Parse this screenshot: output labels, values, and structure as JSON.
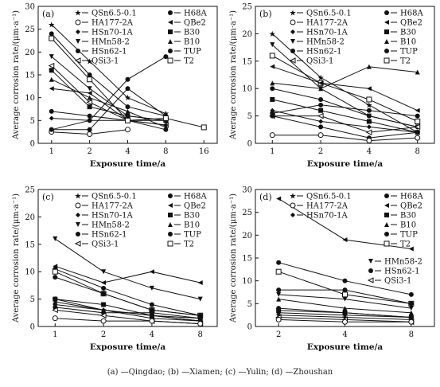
{
  "caption": "(a) —Qingdao; (b) —Xiamen; (c) —Yulin; (d) —Zhoushan",
  "chart_data": [
    {
      "type": "line",
      "panel_label": "(a)",
      "xlabel": "Exposure time/a",
      "ylabel": "Average corrosion rate/(μm·a⁻¹)",
      "x_scale": "log2",
      "x_ticks": [
        1,
        2,
        4,
        8,
        16
      ],
      "ylim": [
        0,
        30
      ],
      "y_ticks": [
        0,
        5,
        10,
        15,
        20,
        25,
        30
      ],
      "legend": {
        "left": [
          {
            "label": "QSn6.5-0.1",
            "marker": "★"
          },
          {
            "label": "HA177-2A",
            "marker": "○"
          },
          {
            "label": "HSn70-1A",
            "marker": "◆"
          },
          {
            "label": "HMn58-2",
            "marker": "▼"
          },
          {
            "label": "HSn62-1",
            "marker": "●"
          },
          {
            "label": "QSi3-1",
            "marker": "◁"
          }
        ],
        "right": [
          {
            "label": "H68A",
            "marker": "●"
          },
          {
            "label": "QBe2",
            "marker": "◄"
          },
          {
            "label": "B30",
            "marker": "■"
          },
          {
            "label": "B10",
            "marker": "▲"
          },
          {
            "label": "TUP",
            "marker": "●"
          },
          {
            "label": "T2",
            "marker": "□"
          }
        ]
      },
      "series": [
        {
          "name": "QSn6.5-0.1",
          "x": [
            1,
            2,
            4,
            8
          ],
          "values": [
            26,
            18,
            10,
            6.5
          ]
        },
        {
          "name": "HSn62-1",
          "x": [
            1,
            2,
            4,
            8
          ],
          "values": [
            24,
            15,
            8,
            6
          ]
        },
        {
          "name": "HMn58-2",
          "x": [
            1,
            2,
            4,
            8
          ],
          "values": [
            19,
            12,
            6,
            5
          ]
        },
        {
          "name": "QSi3-1",
          "x": [
            1,
            2,
            4,
            8
          ],
          "values": [
            17,
            9,
            5,
            4
          ]
        },
        {
          "name": "B30",
          "x": [
            1,
            2,
            4,
            8
          ],
          "values": [
            16,
            8,
            6,
            5
          ]
        },
        {
          "name": "B10",
          "x": [
            1,
            2,
            4,
            8
          ],
          "values": [
            14,
            10,
            7,
            3.5
          ]
        },
        {
          "name": "QBe2",
          "x": [
            1,
            2,
            4,
            8
          ],
          "values": [
            12,
            11,
            5,
            5
          ]
        },
        {
          "name": "TUP",
          "x": [
            1,
            2,
            4,
            8
          ],
          "values": [
            7,
            6,
            5,
            3
          ]
        },
        {
          "name": "HSn70-1A",
          "x": [
            1,
            2,
            4,
            8
          ],
          "values": [
            5.5,
            5,
            5,
            4
          ]
        },
        {
          "name": "H68A",
          "x": [
            1,
            2,
            4,
            8
          ],
          "values": [
            3,
            3,
            12,
            6
          ]
        },
        {
          "name": "HA177-2A",
          "x": [
            1,
            2,
            4
          ],
          "values": [
            2.5,
            2,
            3
          ]
        },
        {
          "name": "T2",
          "x": [
            1,
            2,
            4,
            8,
            16
          ],
          "values": [
            23,
            14,
            5,
            5.5,
            3.5
          ]
        },
        {
          "name": "",
          "x": [
            1,
            2,
            4,
            8
          ],
          "values": [
            3,
            5,
            14,
            19
          ]
        }
      ]
    },
    {
      "type": "line",
      "panel_label": "(b)",
      "xlabel": "Exposure time/a",
      "ylabel": "Average corrosion rate/(μm·a⁻¹)",
      "x_scale": "log2",
      "x_ticks": [
        1,
        2,
        4,
        8
      ],
      "ylim": [
        0,
        25
      ],
      "y_ticks": [
        0,
        5,
        10,
        15,
        20,
        25
      ],
      "legend": {
        "left": [
          {
            "label": "QSn6.5-0.1",
            "marker": "★"
          },
          {
            "label": "HA177-2A",
            "marker": "○"
          },
          {
            "label": "HSn70-1A",
            "marker": "◆"
          },
          {
            "label": "HMn58-2",
            "marker": "▼"
          },
          {
            "label": "HSn62-1",
            "marker": "●"
          },
          {
            "label": "QSi3-1",
            "marker": "◁"
          }
        ],
        "right": [
          {
            "label": "H68A",
            "marker": "●"
          },
          {
            "label": "QBe2",
            "marker": "◄"
          },
          {
            "label": "B30",
            "marker": "■"
          },
          {
            "label": "B10",
            "marker": "▲"
          },
          {
            "label": "TUP",
            "marker": "●"
          },
          {
            "label": "T2",
            "marker": "□"
          }
        ]
      },
      "series": [
        {
          "name": "QSn6.5-0.1",
          "x": [
            1,
            2,
            4,
            8
          ],
          "values": [
            20,
            12,
            7,
            2
          ]
        },
        {
          "name": "HMn58-2",
          "x": [
            1,
            2,
            4,
            8
          ],
          "values": [
            18,
            10,
            5,
            3
          ]
        },
        {
          "name": "T2",
          "x": [
            1,
            2,
            4,
            8
          ],
          "values": [
            16,
            11,
            8,
            4
          ]
        },
        {
          "name": "QBe2",
          "x": [
            1,
            2,
            4,
            8
          ],
          "values": [
            14,
            11,
            10,
            6
          ]
        },
        {
          "name": "B10",
          "x": [
            1,
            2,
            4,
            8
          ],
          "values": [
            11,
            10,
            14,
            13
          ]
        },
        {
          "name": "HSn62-1",
          "x": [
            1,
            2,
            4,
            8
          ],
          "values": [
            10,
            8,
            5,
            3
          ]
        },
        {
          "name": "B30",
          "x": [
            1,
            2,
            4,
            8
          ],
          "values": [
            8,
            6,
            4,
            2
          ]
        },
        {
          "name": "HSn70-1A",
          "x": [
            1,
            2,
            4,
            8
          ],
          "values": [
            6,
            4,
            3,
            2
          ]
        },
        {
          "name": "QSi3-1",
          "x": [
            1,
            2,
            4,
            8
          ],
          "values": [
            5,
            5,
            2,
            3
          ]
        },
        {
          "name": "H68A",
          "x": [
            1,
            2,
            4,
            8
          ],
          "values": [
            5,
            3,
            1,
            2
          ]
        },
        {
          "name": "TUP",
          "x": [
            1,
            2,
            4,
            8
          ],
          "values": [
            5.5,
            7,
            6,
            5
          ]
        },
        {
          "name": "HA177-2A",
          "x": [
            1,
            2,
            4,
            8
          ],
          "values": [
            1.5,
            1.5,
            0.5,
            1
          ]
        }
      ]
    },
    {
      "type": "line",
      "panel_label": "(c)",
      "xlabel": "Exposure time/a",
      "ylabel": "Average corrosion rate/(μm·a⁻¹)",
      "x_scale": "log2",
      "x_ticks": [
        1,
        2,
        4,
        8
      ],
      "ylim": [
        0,
        25
      ],
      "y_ticks": [
        0,
        5,
        10,
        15,
        20,
        25
      ],
      "legend": {
        "left": [
          {
            "label": "QSn6.5-0.1",
            "marker": "★"
          },
          {
            "label": "HA177-2A",
            "marker": "○"
          },
          {
            "label": "HSn70-1A",
            "marker": "◆"
          },
          {
            "label": "HMn58-2",
            "marker": "▼"
          },
          {
            "label": "HSn62-1",
            "marker": "●"
          },
          {
            "label": "QSi3-1",
            "marker": "◁"
          }
        ],
        "right": [
          {
            "label": "H68A",
            "marker": "●"
          },
          {
            "label": "QBe2",
            "marker": "◄"
          },
          {
            "label": "B30",
            "marker": "■"
          },
          {
            "label": "B10",
            "marker": "▲"
          },
          {
            "label": "TUP",
            "marker": "●"
          },
          {
            "label": "T2",
            "marker": "□"
          }
        ]
      },
      "series": [
        {
          "name": "HMn58-2",
          "x": [
            1,
            2,
            4,
            8
          ],
          "values": [
            16,
            10,
            7,
            5
          ]
        },
        {
          "name": "QBe2",
          "x": [
            1,
            2,
            4,
            8
          ],
          "values": [
            11,
            8,
            10,
            8
          ]
        },
        {
          "name": "H68A",
          "x": [
            1,
            2,
            4,
            8
          ],
          "values": [
            10.5,
            7,
            4,
            2
          ]
        },
        {
          "name": "T2",
          "x": [
            1,
            2,
            4,
            8
          ],
          "values": [
            10,
            6,
            3,
            2
          ]
        },
        {
          "name": "HSn62-1",
          "x": [
            1,
            2,
            4,
            8
          ],
          "values": [
            9,
            6,
            3,
            2
          ]
        },
        {
          "name": "QSn6.5-0.1",
          "x": [
            1,
            2,
            4,
            8
          ],
          "values": [
            5,
            3,
            2,
            1
          ]
        },
        {
          "name": "B30",
          "x": [
            1,
            2,
            4,
            8
          ],
          "values": [
            5,
            4,
            2,
            1.5
          ]
        },
        {
          "name": "B10",
          "x": [
            1,
            2,
            4,
            8
          ],
          "values": [
            4.5,
            3,
            2,
            1
          ]
        },
        {
          "name": "HSn70-1A",
          "x": [
            1,
            2,
            4,
            8
          ],
          "values": [
            4,
            3,
            1.5,
            1
          ]
        },
        {
          "name": "TUP",
          "x": [
            1,
            2,
            4,
            8
          ],
          "values": [
            3.5,
            2.5,
            2.5,
            1.5
          ]
        },
        {
          "name": "QSi3-1",
          "x": [
            1,
            2,
            4,
            8
          ],
          "values": [
            3,
            2,
            1,
            0.5
          ]
        },
        {
          "name": "HA177-2A",
          "x": [
            1,
            2,
            4,
            8
          ],
          "values": [
            1.5,
            1,
            1,
            0.5
          ]
        }
      ]
    },
    {
      "type": "line",
      "panel_label": "(d)",
      "xlabel": "Exposure time/a",
      "ylabel": "Average corrosion rate/(μm·a⁻¹)",
      "x_scale": "log2",
      "x_ticks": [
        2,
        4,
        8
      ],
      "ylim": [
        0,
        30
      ],
      "y_ticks": [
        0,
        5,
        10,
        15,
        20,
        25,
        30
      ],
      "legend": {
        "left": [
          {
            "label": "QSn6.5-0.1",
            "marker": "★"
          },
          {
            "label": "HA177-2A",
            "marker": "○"
          },
          {
            "label": "HSn70-1A",
            "marker": "◆"
          }
        ],
        "right": [
          {
            "label": "H68A",
            "marker": "●"
          },
          {
            "label": "QBe2",
            "marker": "◄"
          },
          {
            "label": "B30",
            "marker": "■"
          },
          {
            "label": "B10",
            "marker": "▲"
          },
          {
            "label": "TUP",
            "marker": "●"
          },
          {
            "label": "T2",
            "marker": "□"
          }
        ],
        "right_lower": [
          {
            "label": "HMn58-2",
            "marker": "▼"
          },
          {
            "label": "HSn62-1",
            "marker": "●"
          },
          {
            "label": "QSi3-1",
            "marker": "◁"
          }
        ]
      },
      "series": [
        {
          "name": "QBe2",
          "x": [
            2,
            4,
            8
          ],
          "values": [
            28,
            19,
            17
          ]
        },
        {
          "name": "HSn62-1",
          "x": [
            2,
            4,
            8
          ],
          "values": [
            14,
            10,
            7
          ]
        },
        {
          "name": "T2",
          "x": [
            2,
            4,
            8
          ],
          "values": [
            12,
            7,
            5
          ]
        },
        {
          "name": "H68A",
          "x": [
            2,
            4,
            8
          ],
          "values": [
            8,
            8,
            5
          ]
        },
        {
          "name": "HMn58-2",
          "x": [
            2,
            4,
            8
          ],
          "values": [
            7,
            6,
            4
          ]
        },
        {
          "name": "B10",
          "x": [
            2,
            4,
            8
          ],
          "values": [
            6,
            4,
            3
          ]
        },
        {
          "name": "TUP",
          "x": [
            2,
            4,
            8
          ],
          "values": [
            4,
            3,
            2
          ]
        },
        {
          "name": "B30",
          "x": [
            2,
            4,
            8
          ],
          "values": [
            3.5,
            3,
            2
          ]
        },
        {
          "name": "HSn70-1A",
          "x": [
            2,
            4,
            8
          ],
          "values": [
            3,
            2.5,
            2
          ]
        },
        {
          "name": "QSn6.5-0.1",
          "x": [
            2,
            4,
            8
          ],
          "values": [
            2.5,
            2,
            1.5
          ]
        },
        {
          "name": "QSi3-1",
          "x": [
            2,
            4,
            8
          ],
          "values": [
            2,
            1.5,
            1
          ]
        },
        {
          "name": "HA177-2A",
          "x": [
            2,
            4,
            8
          ],
          "values": [
            1.5,
            1,
            1
          ]
        }
      ]
    }
  ]
}
